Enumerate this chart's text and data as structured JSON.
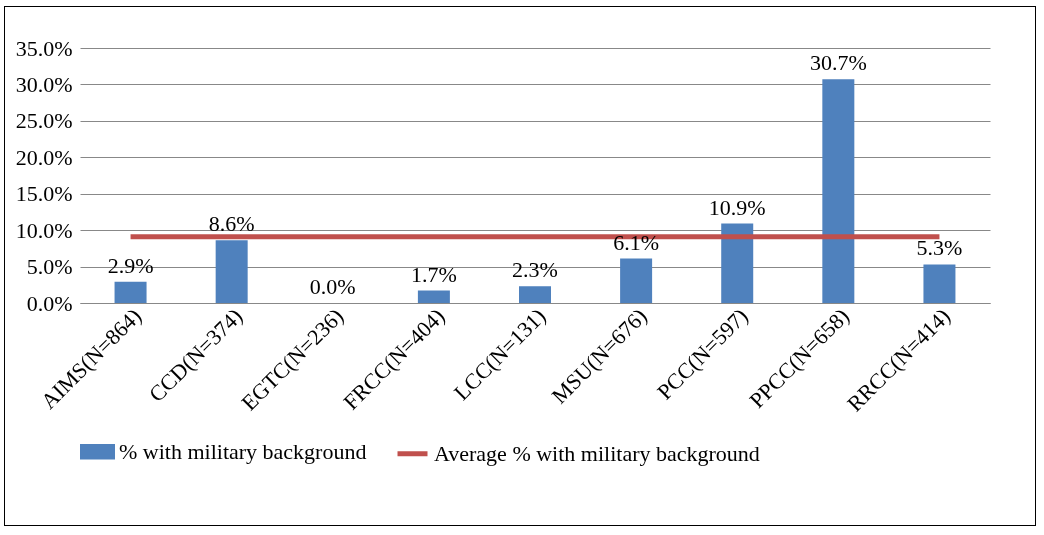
{
  "chart_data": {
    "type": "bar",
    "categories": [
      "AIMS(N=864)",
      "CCD(N=374)",
      "EGTC(N=236)",
      "FRCC(N=404)",
      "LCC(N=131)",
      "MSU(N=676)",
      "PCC(N=597)",
      "PPCC(N=658)",
      "RRCC(N=414)"
    ],
    "series": [
      {
        "name": "% with military background",
        "color": "#4f81bd",
        "values": [
          2.9,
          8.6,
          0.0,
          1.7,
          2.3,
          6.1,
          10.9,
          30.7,
          5.3
        ],
        "value_labels": [
          "2.9%",
          "8.6%",
          "0.0%",
          "1.7%",
          "2.3%",
          "6.1%",
          "10.9%",
          "30.7%",
          "5.3%"
        ]
      },
      {
        "name": "Average % with military background",
        "type": "line",
        "color": "#c0504d",
        "values": [
          9.1,
          9.1,
          9.1,
          9.1,
          9.1,
          9.1,
          9.1,
          9.1,
          9.1
        ]
      }
    ],
    "ylim": [
      0,
      35
    ],
    "yticks": [
      {
        "value": 0,
        "label": "0.0%"
      },
      {
        "value": 5,
        "label": "5.0%"
      },
      {
        "value": 10,
        "label": "10.0%"
      },
      {
        "value": 15,
        "label": "15.0%"
      },
      {
        "value": 20,
        "label": "20.0%"
      },
      {
        "value": 25,
        "label": "25.0%"
      },
      {
        "value": 30,
        "label": "30.0%"
      },
      {
        "value": 35,
        "label": "35.0%"
      }
    ],
    "grid": "y",
    "legend": "bottom",
    "marker": "none"
  }
}
